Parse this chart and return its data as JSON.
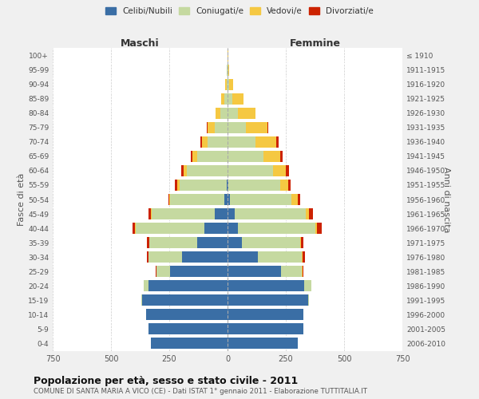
{
  "age_groups": [
    "0-4",
    "5-9",
    "10-14",
    "15-19",
    "20-24",
    "25-29",
    "30-34",
    "35-39",
    "40-44",
    "45-49",
    "50-54",
    "55-59",
    "60-64",
    "65-69",
    "70-74",
    "75-79",
    "80-84",
    "85-89",
    "90-94",
    "95-99",
    "100+"
  ],
  "birth_years": [
    "2006-2010",
    "2001-2005",
    "1996-2000",
    "1991-1995",
    "1986-1990",
    "1981-1985",
    "1976-1980",
    "1971-1975",
    "1966-1970",
    "1961-1965",
    "1956-1960",
    "1951-1955",
    "1946-1950",
    "1941-1945",
    "1936-1940",
    "1931-1935",
    "1926-1930",
    "1921-1925",
    "1916-1920",
    "1911-1915",
    "≤ 1910"
  ],
  "males": {
    "celibe": [
      330,
      340,
      350,
      365,
      340,
      245,
      195,
      130,
      100,
      55,
      15,
      5,
      0,
      0,
      0,
      0,
      0,
      0,
      0,
      0,
      0
    ],
    "coniugato": [
      0,
      0,
      0,
      5,
      20,
      60,
      145,
      205,
      295,
      270,
      230,
      200,
      175,
      130,
      85,
      55,
      30,
      12,
      5,
      2,
      0
    ],
    "vedovo": [
      0,
      0,
      0,
      0,
      0,
      0,
      0,
      2,
      2,
      3,
      5,
      10,
      15,
      20,
      25,
      30,
      20,
      15,
      5,
      2,
      0
    ],
    "divorziato": [
      0,
      0,
      0,
      0,
      0,
      2,
      5,
      8,
      12,
      10,
      5,
      10,
      8,
      8,
      5,
      5,
      0,
      0,
      0,
      0,
      0
    ]
  },
  "females": {
    "nubile": [
      300,
      325,
      325,
      345,
      330,
      230,
      130,
      60,
      45,
      30,
      10,
      5,
      0,
      0,
      0,
      0,
      0,
      0,
      0,
      0,
      0
    ],
    "coniugata": [
      0,
      0,
      0,
      5,
      30,
      90,
      190,
      250,
      330,
      305,
      265,
      220,
      195,
      155,
      120,
      80,
      45,
      20,
      8,
      2,
      0
    ],
    "vedova": [
      0,
      0,
      0,
      0,
      0,
      2,
      3,
      5,
      8,
      15,
      25,
      35,
      55,
      70,
      90,
      90,
      75,
      50,
      15,
      5,
      2
    ],
    "divorziata": [
      0,
      0,
      0,
      0,
      0,
      3,
      8,
      12,
      22,
      15,
      10,
      12,
      12,
      10,
      8,
      5,
      0,
      0,
      0,
      0,
      0
    ]
  },
  "color_celibe": "#3a6ea5",
  "color_coniugato": "#c5d9a0",
  "color_vedovo": "#f5c842",
  "color_divorziato": "#cc2200",
  "xlim": 750,
  "title": "Popolazione per età, sesso e stato civile - 2011",
  "subtitle": "COMUNE DI SANTA MARIA A VICO (CE) - Dati ISTAT 1° gennaio 2011 - Elaborazione TUTTITALIA.IT",
  "ylabel_left": "Fasce di età",
  "ylabel_right": "Anni di nascita",
  "xlabel_maschi": "Maschi",
  "xlabel_femmine": "Femmine",
  "legend_labels": [
    "Celibi/Nubili",
    "Coniugati/e",
    "Vedovi/e",
    "Divorziati/e"
  ],
  "bg_color": "#f0f0f0",
  "plot_bg": "#ffffff"
}
